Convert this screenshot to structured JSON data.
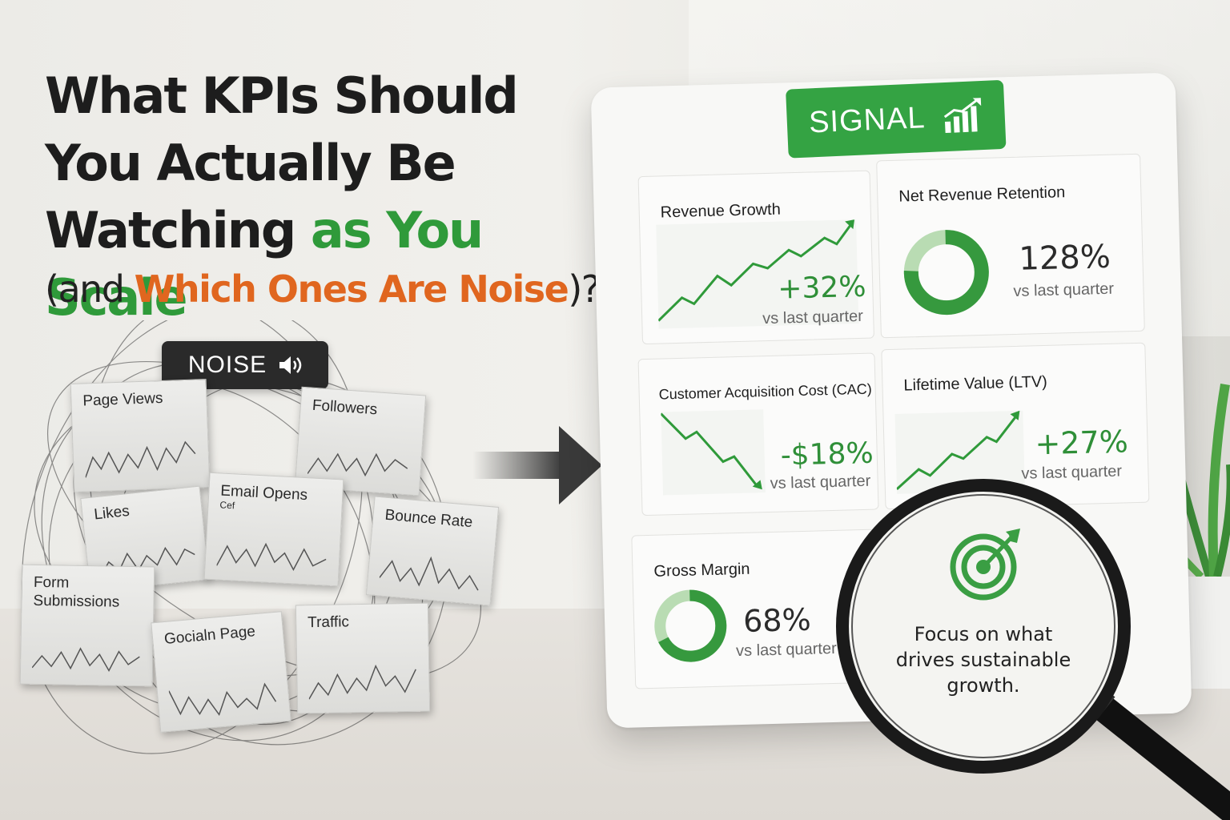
{
  "headline": {
    "line1": "What KPIs Should",
    "line2": "You Actually Be",
    "line3_dark": "Watching",
    "line3_green": "as You Scale",
    "sub_open": "(and",
    "sub_orange": "Which Ones Are Noise",
    "sub_close": ")?"
  },
  "noise": {
    "badge": "NOISE",
    "icon": "speaker-icon",
    "notes": [
      "Page Views",
      "Followers",
      "Likes",
      "Email Opens",
      "Cef",
      "Bounce Rate",
      "Form Submissions",
      "Gocialn Page",
      "Traffic"
    ]
  },
  "signal": {
    "badge": "SIGNAL",
    "icon": "bar-chart-growth-icon",
    "cards": {
      "revenue": {
        "title": "Revenue Growth",
        "value": "+32%",
        "sub": "vs last quarter"
      },
      "nrr": {
        "title": "Net Revenue Retention",
        "value": "128%",
        "sub": "vs last quarter"
      },
      "cac": {
        "title": "Customer Acquisition Cost (CAC)",
        "value": "-$18%",
        "sub": "vs last quarter"
      },
      "ltv": {
        "title": "Lifetime Value (LTV)",
        "value": "+27%",
        "sub": "vs last quarter"
      },
      "margin": {
        "title": "Gross Margin",
        "value": "68%",
        "sub": "vs last quarter"
      }
    }
  },
  "magnifier": {
    "icon": "target-arrow-icon",
    "text": "Focus on what drives sustainable growth."
  },
  "colors": {
    "signal_green": "#34a343",
    "noise_dark": "#2a2a2a",
    "accent_orange": "#e0661f",
    "headline_green": "#2f9a3a"
  }
}
